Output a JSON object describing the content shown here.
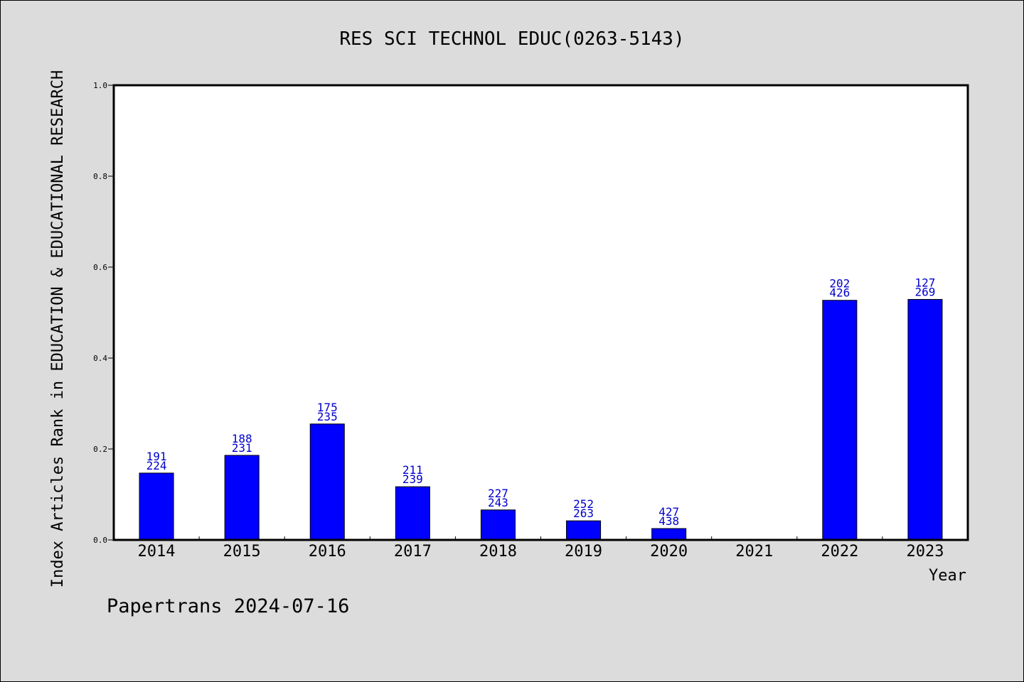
{
  "chart_data": {
    "type": "bar",
    "title": "RES SCI TECHNOL EDUC(0263-5143)",
    "xlabel": "Year",
    "ylabel": "Index Articles Rank in EDUCATION & EDUCATIONAL RESEARCH",
    "categories": [
      "2014",
      "2015",
      "2016",
      "2017",
      "2018",
      "2019",
      "2020",
      "2021",
      "2022",
      "2023"
    ],
    "values": [
      0.147,
      0.186,
      0.255,
      0.117,
      0.066,
      0.042,
      0.025,
      null,
      0.527,
      0.529
    ],
    "data_labels_top": [
      "191",
      "188",
      "175",
      "211",
      "227",
      "252",
      "427",
      "",
      "202",
      "127"
    ],
    "data_labels_bottom": [
      "224",
      "231",
      "235",
      "239",
      "243",
      "263",
      "438",
      "",
      "426",
      "269"
    ],
    "ylim": [
      0.0,
      1.0
    ],
    "yticks": [
      "0.0",
      "0.2",
      "0.4",
      "0.6",
      "0.8",
      "1.0"
    ],
    "grid": false,
    "bar_color": "#0000ff",
    "label_color": "#0000cc",
    "background_color": "#dcdcdc",
    "plot_background_color": "#ffffff"
  },
  "footer": {
    "source_text": "Papertrans 2024-07-16"
  }
}
